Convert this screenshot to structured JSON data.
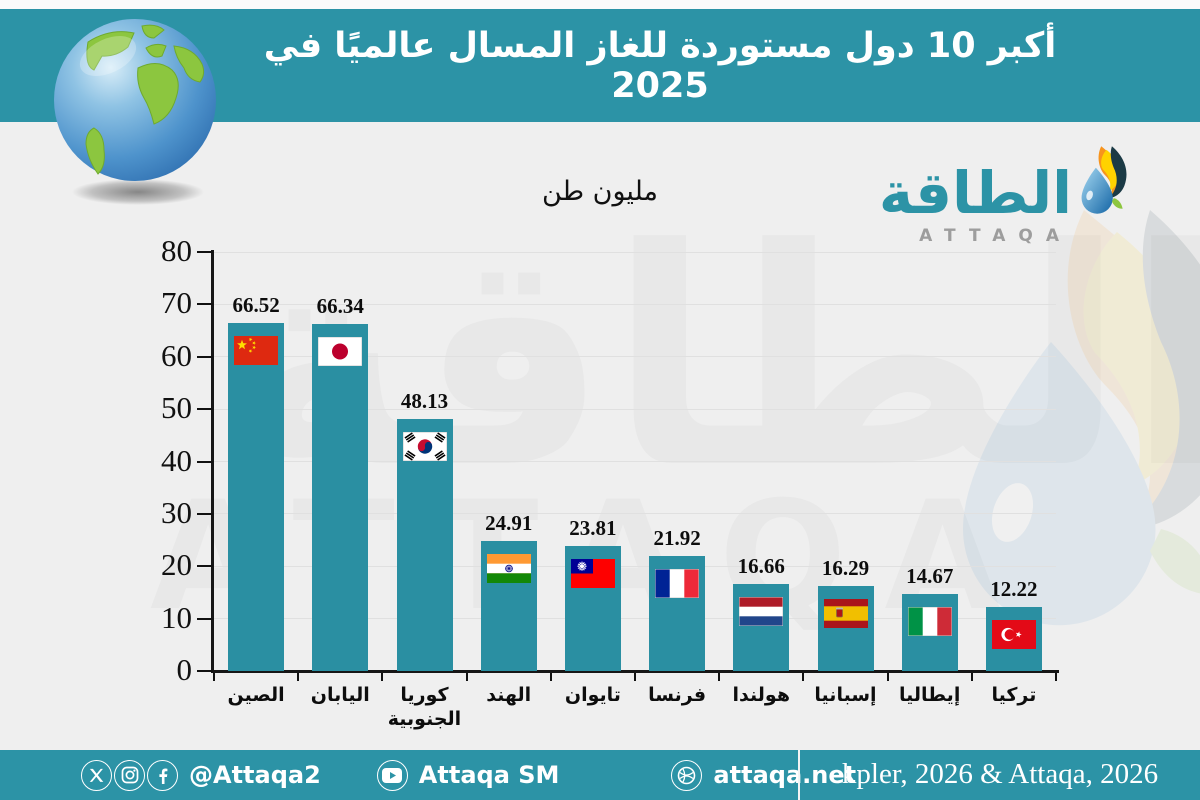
{
  "header": {
    "title": "أكبر 10 دول مستوردة للغاز المسال عالميًا في 2025"
  },
  "brand": {
    "name_ar": "الطاقة",
    "name_en": "ATTAQA"
  },
  "chart_data": {
    "type": "bar",
    "title": "أكبر 10 دول مستوردة للغاز المسال عالميًا في 2025",
    "ylabel": "مليون طن",
    "categories": [
      "الصين",
      "اليابان",
      "كوريا الجنوبية",
      "الهند",
      "تايوان",
      "فرنسا",
      "هولندا",
      "إسبانيا",
      "إيطاليا",
      "تركيا"
    ],
    "values": [
      66.52,
      66.34,
      48.13,
      24.91,
      23.81,
      21.92,
      16.66,
      16.29,
      14.67,
      12.22
    ],
    "flags": [
      "china",
      "japan",
      "south-korea",
      "india",
      "taiwan",
      "france",
      "netherlands",
      "spain",
      "italy",
      "turkey"
    ],
    "ylim": [
      0,
      80
    ],
    "yticks": [
      0,
      10,
      20,
      30,
      40,
      50,
      60,
      70,
      80
    ],
    "grid": true,
    "legend": "none",
    "bar_color": "#2a8fa2"
  },
  "footer": {
    "social_handle": "@Attaqa2",
    "youtube_handle": "Attaqa SM",
    "website": "attaqa.net",
    "source": "kpler, 2026 & Attaqa, 2026"
  },
  "colors": {
    "accent_teal": "#2c93a6",
    "background": "#efefef",
    "bar": "#2a8fa2"
  }
}
